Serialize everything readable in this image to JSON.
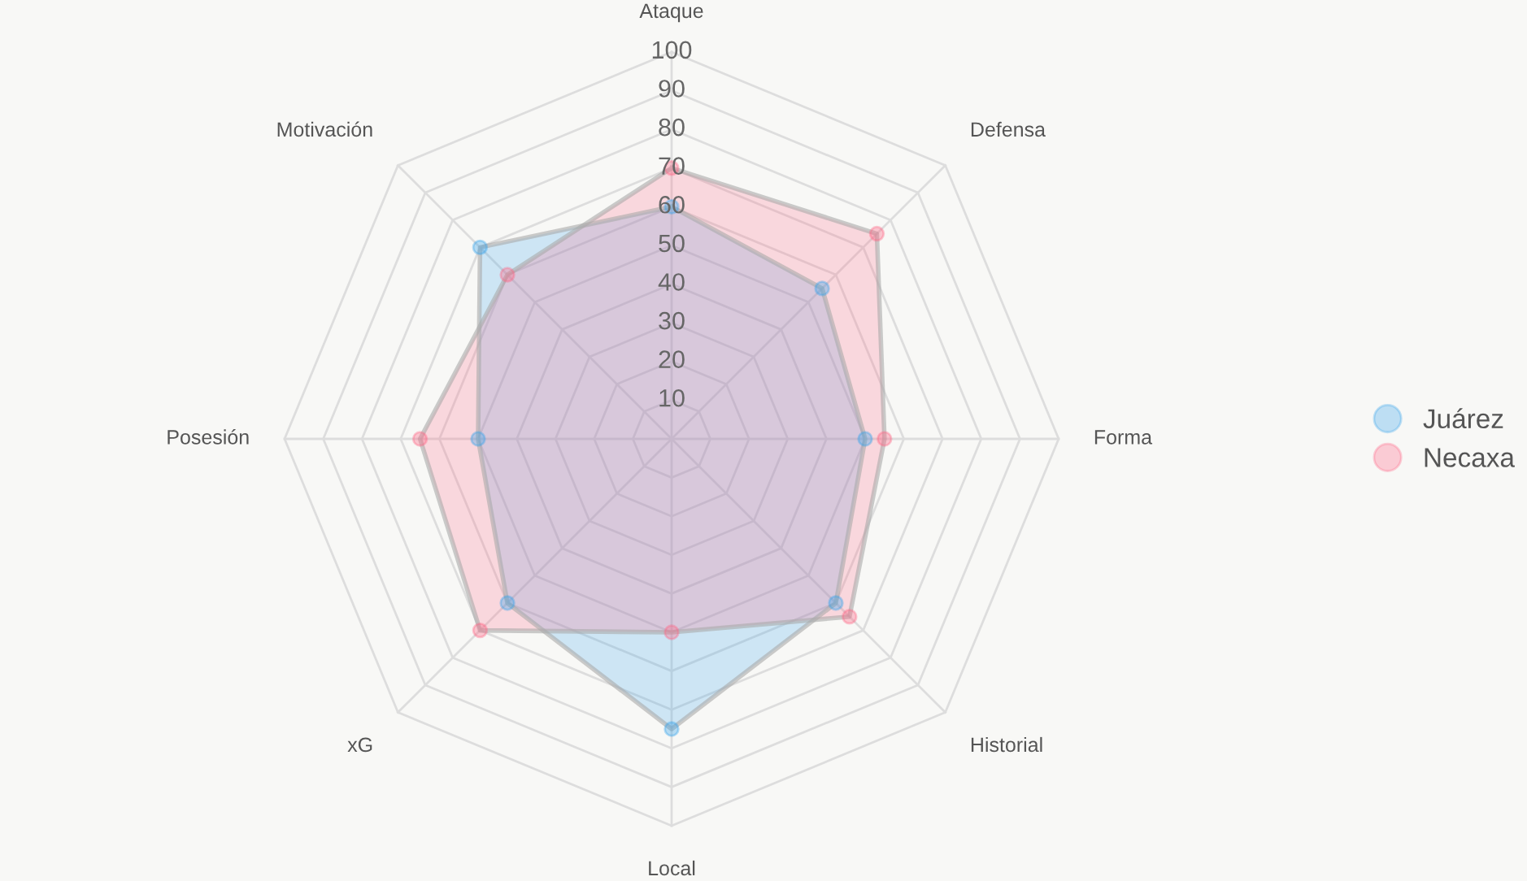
{
  "chart_data": {
    "type": "radar",
    "categories": [
      "Ataque",
      "Defensa",
      "Forma",
      "Historial",
      "Local",
      "xG",
      "Posesión",
      "Motivación"
    ],
    "series": [
      {
        "name": "Juárez",
        "color": "#36a2eb",
        "values": [
          60,
          55,
          50,
          60,
          75,
          60,
          50,
          70
        ]
      },
      {
        "name": "Necaxa",
        "color": "#ff6384",
        "values": [
          70,
          75,
          55,
          65,
          50,
          70,
          65,
          60
        ]
      }
    ],
    "ylim": [
      0,
      100
    ],
    "yticks": [
      10,
      20,
      30,
      40,
      50,
      60,
      70,
      80,
      90,
      100
    ],
    "grid": true,
    "legend": "right",
    "marker": "circle"
  }
}
